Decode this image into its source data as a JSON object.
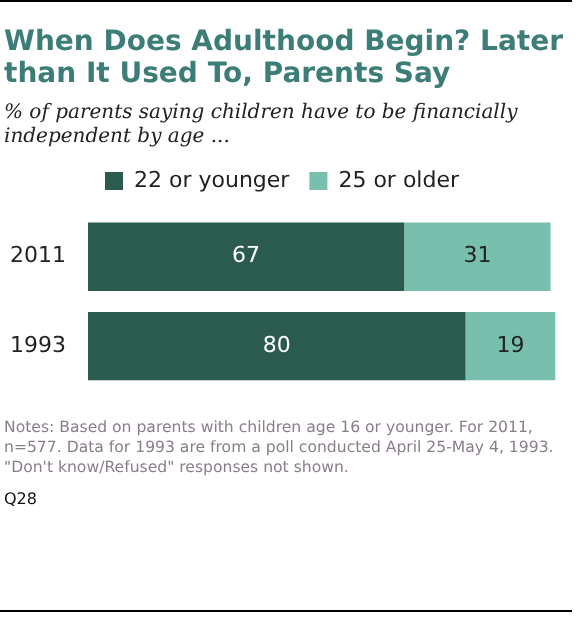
{
  "chart_data": {
    "type": "bar",
    "orientation": "horizontal",
    "stacked": true,
    "title": "When Does Adulthood Begin? Later than It Used To, Parents Say",
    "subtitle": "% of parents saying children have to be financially independent by age ...",
    "categories": [
      "2011",
      "1993"
    ],
    "series": [
      {
        "name": "22 or younger",
        "color": "#2b5a4e",
        "values": [
          67,
          80
        ]
      },
      {
        "name": "25 or older",
        "color": "#78bfad",
        "values": [
          31,
          19
        ]
      }
    ],
    "data_labels": true,
    "tick_labels": "y",
    "legend": "top",
    "annotations": [
      "Notes: Based on parents with children age 16 or younger. For 2011, n=577. Data for 1993 are from a poll conducted April 25-May 4, 1993. \"Don't know/Refused\" responses not shown.",
      "Q28"
    ]
  }
}
